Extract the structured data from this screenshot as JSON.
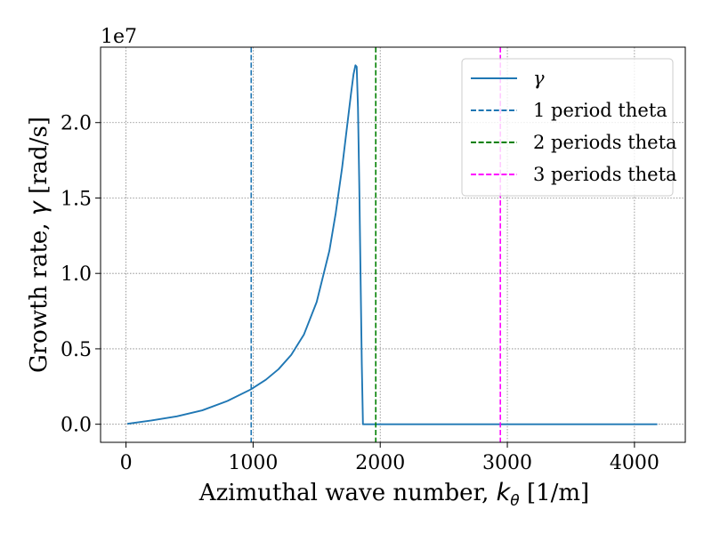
{
  "chart_data": {
    "type": "line",
    "title": "",
    "xlabel": "Azimuthal wave number, k_θ [1/m]",
    "xlabel_parts": {
      "prefix": "Azimuthal wave number, ",
      "symbol": "k",
      "subscript": "θ",
      "suffix": " [1/m]"
    },
    "ylabel": "Growth rate, γ [rad/s]",
    "ylabel_parts": {
      "prefix": "Growth rate, ",
      "symbol": "γ",
      "suffix": " [rad/s]"
    },
    "y_offset_label": "1e7",
    "xlim": [
      -200,
      4400
    ],
    "ylim": [
      -1.2,
      25
    ],
    "y_scale": 10000000,
    "grid": true,
    "x_ticks": [
      0,
      1000,
      2000,
      3000,
      4000
    ],
    "y_ticks": [
      0.0,
      0.5,
      1.0,
      1.5,
      2.0
    ],
    "y_tick_labels": [
      "0.0",
      "0.5",
      "1.0",
      "1.5",
      "2.0"
    ],
    "legend_position": "top-right",
    "series": [
      {
        "name": "γ",
        "color": "#1f77b4",
        "style": "solid",
        "x": [
          10,
          200,
          400,
          600,
          800,
          980,
          1100,
          1200,
          1300,
          1400,
          1500,
          1600,
          1650,
          1700,
          1740,
          1770,
          1790,
          1805,
          1815,
          1825,
          1835,
          1845,
          1855,
          1863,
          1864,
          1870,
          1950,
          2500,
          3000,
          3500,
          4180
        ],
        "y": [
          0.03,
          0.25,
          0.52,
          0.92,
          1.55,
          2.3,
          2.95,
          3.65,
          4.6,
          5.95,
          8.1,
          11.5,
          14.0,
          17.0,
          19.8,
          21.9,
          23.2,
          23.8,
          23.7,
          21.0,
          16.0,
          10.0,
          4.0,
          0.5,
          0.0,
          0.0,
          0.0,
          0.0,
          0.0,
          0.0,
          0.0
        ]
      },
      {
        "name": "1 period theta",
        "color": "#1f77b4",
        "style": "dashed",
        "vline_x": 985
      },
      {
        "name": "2 periods theta",
        "color": "#008000",
        "style": "dashed",
        "vline_x": 1965
      },
      {
        "name": "3 periods theta",
        "color": "#ff00ff",
        "style": "dashed",
        "vline_x": 2945
      }
    ]
  }
}
